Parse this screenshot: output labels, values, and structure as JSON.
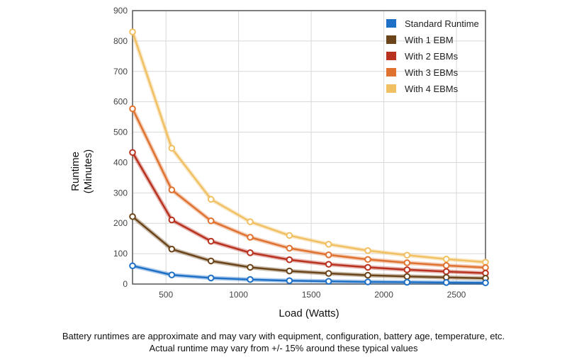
{
  "chart_data": {
    "type": "line",
    "xlabel": "Load (Watts)",
    "ylabel_lines": [
      "Runtime",
      "(Minutes)"
    ],
    "xlim": [
      270,
      2700
    ],
    "ylim": [
      0,
      900
    ],
    "x_ticks": [
      500,
      1000,
      1500,
      2000,
      2500
    ],
    "y_ticks": [
      0,
      100,
      200,
      300,
      400,
      500,
      600,
      700,
      800,
      900
    ],
    "grid": true,
    "legend_position": "top-right",
    "x": [
      270,
      540,
      810,
      1080,
      1350,
      1620,
      1890,
      2160,
      2430,
      2700
    ],
    "series": [
      {
        "name": "Standard Runtime",
        "color": "#1e6fc6",
        "values": [
          60,
          30,
          20,
          15,
          11,
          9,
          7,
          6,
          5,
          4
        ]
      },
      {
        "name": "With 1 EBM",
        "color": "#6b4519",
        "values": [
          222,
          115,
          76,
          55,
          43,
          35,
          29,
          25,
          22,
          19
        ]
      },
      {
        "name": "With 2 EBMs",
        "color": "#b8321f",
        "values": [
          433,
          211,
          141,
          103,
          80,
          65,
          55,
          47,
          41,
          36
        ]
      },
      {
        "name": "With 3 EBMs",
        "color": "#df7230",
        "values": [
          577,
          310,
          208,
          154,
          118,
          96,
          81,
          70,
          61,
          54
        ]
      },
      {
        "name": "With 4 EBMs",
        "color": "#f0c063",
        "values": [
          830,
          447,
          279,
          205,
          160,
          131,
          110,
          95,
          82,
          72
        ]
      }
    ]
  },
  "footnote": {
    "line1": "Battery runtimes are approximate and may vary with equipment, configuration, battery age, temperature, etc.",
    "line2": "Actual runtime may vary from +/- 15% around these typical values"
  }
}
